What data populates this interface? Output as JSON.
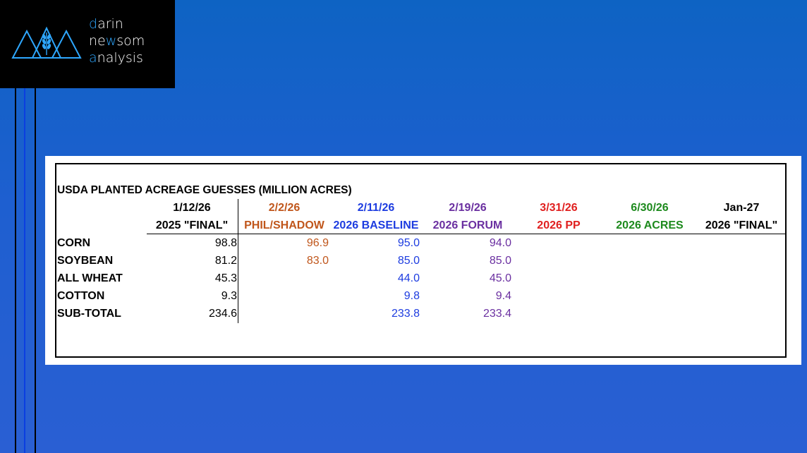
{
  "logo": {
    "line1_initial": "d",
    "line1_rest": "arin",
    "line2_a": "ne",
    "line2_b": "w",
    "line2_c": "som",
    "line3_initial": "a",
    "line3_rest": "nalysis"
  },
  "table": {
    "title": "USDA PLANTED ACREAGE GUESSES (MILLION ACRES)",
    "columns": [
      {
        "date": "1/12/26",
        "label": "2025 \"FINAL\"",
        "color": "#000000"
      },
      {
        "date": "2/2/26",
        "label": "PHIL/SHADOW",
        "color": "#c0561b"
      },
      {
        "date": "2/11/26",
        "label": "2026 BASELINE",
        "color": "#1d3ce0"
      },
      {
        "date": "2/19/26",
        "label": "2026 FORUM",
        "color": "#6a2fa0"
      },
      {
        "date": "3/31/26",
        "label": "2026 PP",
        "color": "#e0201f"
      },
      {
        "date": "6/30/26",
        "label": "2026 ACRES",
        "color": "#1d8a1d"
      },
      {
        "date": "Jan-27",
        "label": "2026 \"FINAL\"",
        "color": "#000000"
      }
    ],
    "rows": [
      {
        "label": "CORN",
        "values": [
          "98.8",
          "96.9",
          "95.0",
          "94.0"
        ]
      },
      {
        "label": "SOYBEAN",
        "values": [
          "81.2",
          "83.0",
          "85.0",
          "85.0"
        ]
      },
      {
        "label": "ALL WHEAT",
        "values": [
          "45.3",
          "",
          "44.0",
          "45.0"
        ]
      },
      {
        "label": "COTTON",
        "values": [
          "9.3",
          "",
          "9.8",
          "9.4"
        ]
      },
      {
        "label": "SUB-TOTAL",
        "values": [
          "234.6",
          "",
          "233.8",
          "233.4"
        ]
      }
    ]
  }
}
